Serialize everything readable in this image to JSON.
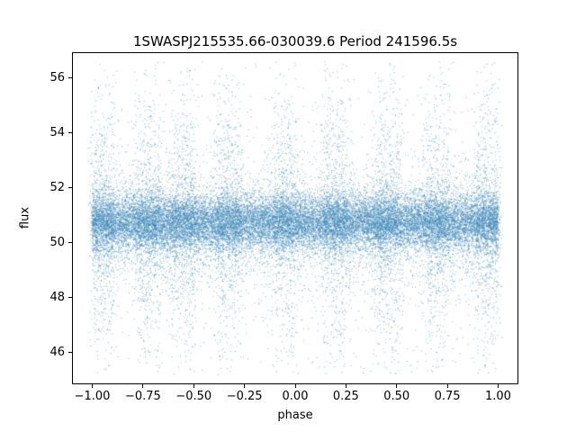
{
  "chart_data": {
    "type": "scatter",
    "title": "1SWASPJ215535.66-030039.6 Period 241596.5s",
    "xlabel": "phase",
    "ylabel": "flux",
    "xlim": [
      -1.1,
      1.1
    ],
    "ylim": [
      44.85,
      56.95
    ],
    "grid": false,
    "legend": "none",
    "marker_color": "#3d87b8",
    "marker_alpha": 0.55,
    "marker_size": 1.1,
    "x_ticks": {
      "values": [
        -1.0,
        -0.75,
        -0.5,
        -0.25,
        0.0,
        0.25,
        0.5,
        0.75,
        1.0
      ],
      "labels": [
        "−1.00",
        "−0.75",
        "−0.50",
        "−0.25",
        "0.00",
        "0.25",
        "0.50",
        "0.75",
        "1.00"
      ]
    },
    "y_ticks": {
      "values": [
        46,
        48,
        50,
        52,
        54,
        56
      ],
      "labels": [
        "46",
        "48",
        "50",
        "52",
        "54",
        "56"
      ]
    },
    "scatter_model": {
      "seed": 7,
      "x_range": [
        -1.0,
        1.0
      ],
      "y_clip": [
        45.2,
        56.6
      ],
      "base": {
        "n": 20000,
        "mean": 50.75,
        "std": 0.5
      },
      "mid": {
        "n": 4500,
        "mean": 50.6,
        "std": 1.15
      },
      "wide": {
        "n": 1400,
        "mean": 50.8,
        "std": 3.0
      },
      "clusters": {
        "centers": [
          -0.95,
          -0.72,
          -0.55,
          -0.33,
          -0.05,
          0.2,
          0.45,
          0.7,
          0.95
        ],
        "n_each": 650,
        "std": 2.7,
        "width": 0.12
      }
    }
  }
}
